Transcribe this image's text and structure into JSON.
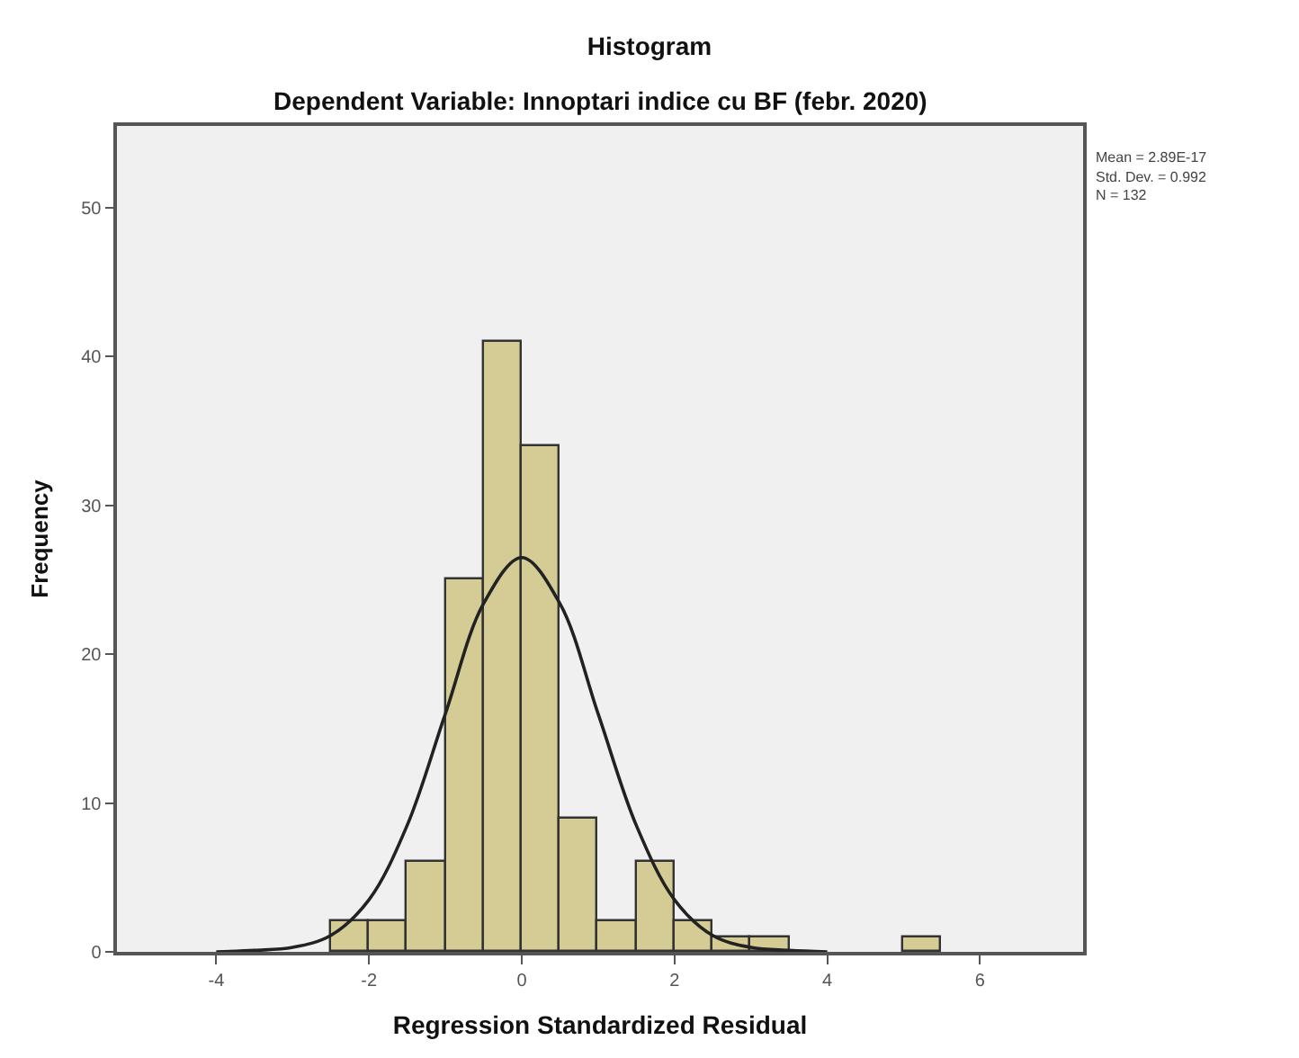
{
  "chart_data": {
    "type": "histogram",
    "title": "Histogram",
    "subtitle": "Dependent Variable: Innoptari indice cu BF (febr. 2020)",
    "xlabel": "Regression Standardized Residual",
    "ylabel": "Frequency",
    "bins": [
      -2.5,
      -2,
      -1.5,
      -1,
      -0.5,
      0,
      0.5,
      1,
      1.5,
      2,
      2.5,
      3,
      3.5,
      4,
      4.5,
      5,
      5.5
    ],
    "values": [
      2,
      2,
      6,
      25,
      41,
      34,
      9,
      2,
      6,
      2,
      1,
      1,
      0,
      0,
      0,
      1
    ],
    "color": "#d4cc94",
    "series": [
      {
        "type": "line",
        "color": "#222222",
        "x": [
          -4,
          -3.5,
          -3,
          -2.5,
          -2,
          -1.5,
          -1,
          -0.5,
          0,
          0.5,
          1,
          1.5,
          2,
          2.5,
          3,
          3.5,
          4
        ],
        "values": [
          0.0,
          0.1,
          0.3,
          1.1,
          3.5,
          8.5,
          16.0,
          23.4,
          26.5,
          23.4,
          16.0,
          8.5,
          3.5,
          1.1,
          0.3,
          0.1,
          0.0
        ]
      }
    ],
    "xlim": [
      -5.3,
      7.35
    ],
    "ylim": [
      0,
      55.5
    ],
    "xticks": [
      -4,
      -2,
      0,
      2,
      4,
      6
    ],
    "yticks": [
      0,
      10,
      20,
      30,
      40,
      50
    ],
    "grid": false,
    "annotations": [
      "Mean = 2.89E-17",
      "Std. Dev. = 0.992",
      "N = 132"
    ]
  }
}
